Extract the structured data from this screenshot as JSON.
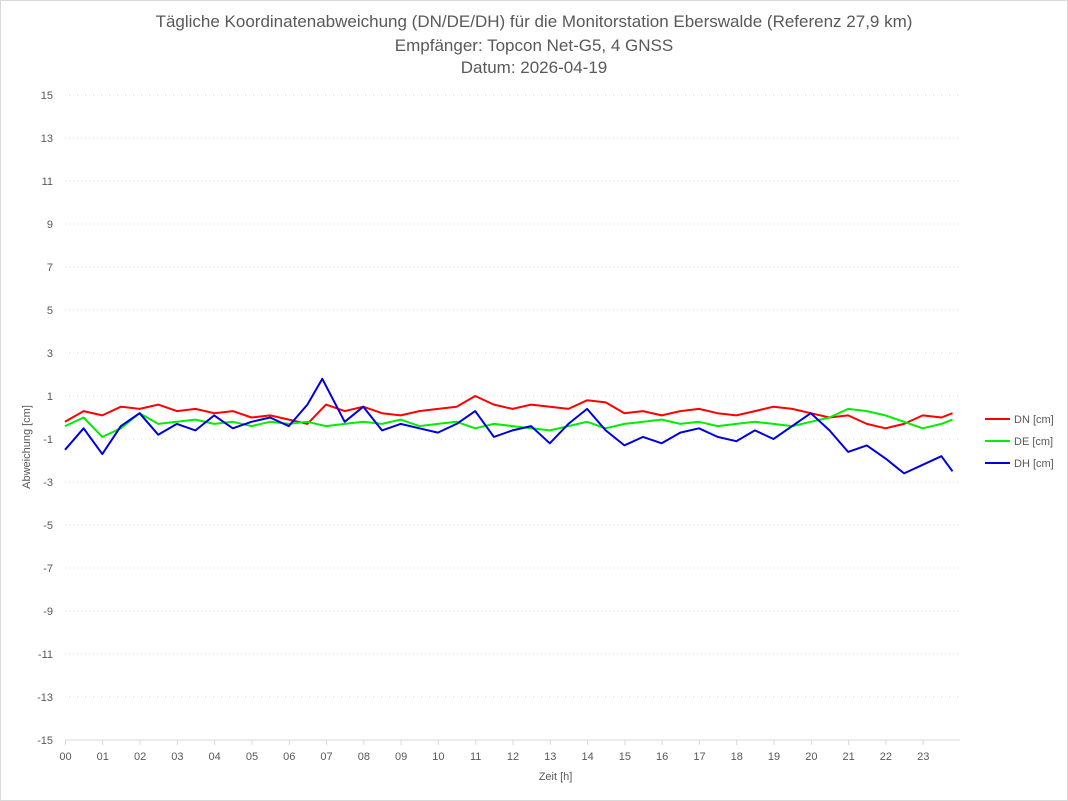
{
  "chart_data": {
    "type": "line",
    "title": "Tägliche Koordinatenabweichung (DN/DE/DH) für die Monitorstation Eberswalde (Referenz 27,9 km)",
    "subtitle": "Empfänger: Topcon Net-G5, 4 GNSS",
    "date_line": "Datum: 2026-04-19",
    "xlabel": "Zeit [h]",
    "ylabel": "Abweichung [cm]",
    "x_tick_labels": [
      "00",
      "01",
      "02",
      "03",
      "04",
      "05",
      "06",
      "07",
      "08",
      "09",
      "10",
      "11",
      "12",
      "13",
      "14",
      "15",
      "16",
      "17",
      "18",
      "19",
      "20",
      "21",
      "22",
      "23"
    ],
    "y_ticks": [
      15,
      13,
      11,
      9,
      7,
      5,
      3,
      1,
      -1,
      -3,
      -5,
      -7,
      -9,
      -11,
      -13,
      -15
    ],
    "ylim": [
      -15,
      15
    ],
    "xlim": [
      0,
      24
    ],
    "grid": "horizontal dotted",
    "legend_position": "right",
    "series": [
      {
        "name": "DN [cm]",
        "color": "#ff0000",
        "x": [
          0,
          0.5,
          1,
          1.5,
          2,
          2.5,
          3,
          3.5,
          4,
          4.5,
          5,
          5.5,
          6,
          6.5,
          7,
          7.5,
          8,
          8.5,
          9,
          9.5,
          10,
          10.5,
          11,
          11.5,
          12,
          12.5,
          13,
          13.5,
          14,
          14.5,
          15,
          15.5,
          16,
          16.5,
          17,
          17.5,
          18,
          18.5,
          19,
          19.5,
          20,
          20.5,
          21,
          21.5,
          22,
          22.5,
          23,
          23.5,
          23.8
        ],
        "y": [
          -0.2,
          0.3,
          0.1,
          0.5,
          0.4,
          0.6,
          0.3,
          0.4,
          0.2,
          0.3,
          0.0,
          0.1,
          -0.1,
          -0.3,
          0.6,
          0.3,
          0.5,
          0.2,
          0.1,
          0.3,
          0.4,
          0.5,
          1.0,
          0.6,
          0.4,
          0.6,
          0.5,
          0.4,
          0.8,
          0.7,
          0.2,
          0.3,
          0.1,
          0.3,
          0.4,
          0.2,
          0.1,
          0.3,
          0.5,
          0.4,
          0.2,
          0.0,
          0.1,
          -0.3,
          -0.5,
          -0.3,
          0.1,
          0.0,
          0.2
        ]
      },
      {
        "name": "DE [cm]",
        "color": "#00ee00",
        "x": [
          0,
          0.5,
          1,
          1.5,
          2,
          2.5,
          3,
          3.5,
          4,
          4.5,
          5,
          5.5,
          6,
          6.5,
          7,
          7.5,
          8,
          8.5,
          9,
          9.5,
          10,
          10.5,
          11,
          11.5,
          12,
          12.5,
          13,
          13.5,
          14,
          14.5,
          15,
          15.5,
          16,
          16.5,
          17,
          17.5,
          18,
          18.5,
          19,
          19.5,
          20,
          20.5,
          21,
          21.5,
          22,
          22.5,
          23,
          23.5,
          23.8
        ],
        "y": [
          -0.4,
          0.0,
          -0.9,
          -0.5,
          0.2,
          -0.3,
          -0.2,
          -0.1,
          -0.3,
          -0.2,
          -0.4,
          -0.2,
          -0.3,
          -0.2,
          -0.4,
          -0.3,
          -0.2,
          -0.3,
          -0.1,
          -0.4,
          -0.3,
          -0.2,
          -0.5,
          -0.3,
          -0.4,
          -0.5,
          -0.6,
          -0.4,
          -0.2,
          -0.5,
          -0.3,
          -0.2,
          -0.1,
          -0.3,
          -0.2,
          -0.4,
          -0.3,
          -0.2,
          -0.3,
          -0.4,
          -0.2,
          0.0,
          0.4,
          0.3,
          0.1,
          -0.2,
          -0.5,
          -0.3,
          -0.1
        ]
      },
      {
        "name": "DH [cm]",
        "color": "#0000dd",
        "x": [
          0,
          0.5,
          1,
          1.5,
          2,
          2.5,
          3,
          3.5,
          4,
          4.5,
          5,
          5.5,
          6,
          6.5,
          6.9,
          7.5,
          8,
          8.5,
          9,
          9.5,
          10,
          10.5,
          11,
          11.5,
          12,
          12.5,
          13,
          13.5,
          14,
          14.5,
          15,
          15.5,
          16,
          16.5,
          17,
          17.5,
          18,
          18.5,
          19,
          19.5,
          20,
          20.5,
          21,
          21.5,
          22,
          22.5,
          23,
          23.5,
          23.8
        ],
        "y": [
          -1.5,
          -0.5,
          -1.7,
          -0.4,
          0.2,
          -0.8,
          -0.3,
          -0.6,
          0.1,
          -0.5,
          -0.2,
          0.0,
          -0.4,
          0.6,
          1.8,
          -0.2,
          0.5,
          -0.6,
          -0.3,
          -0.5,
          -0.7,
          -0.3,
          0.3,
          -0.9,
          -0.6,
          -0.4,
          -1.2,
          -0.3,
          0.4,
          -0.6,
          -1.3,
          -0.9,
          -1.2,
          -0.7,
          -0.5,
          -0.9,
          -1.1,
          -0.6,
          -1.0,
          -0.4,
          0.2,
          -0.6,
          -1.6,
          -1.3,
          -1.9,
          -2.6,
          -2.2,
          -1.8,
          -2.5
        ]
      }
    ]
  }
}
